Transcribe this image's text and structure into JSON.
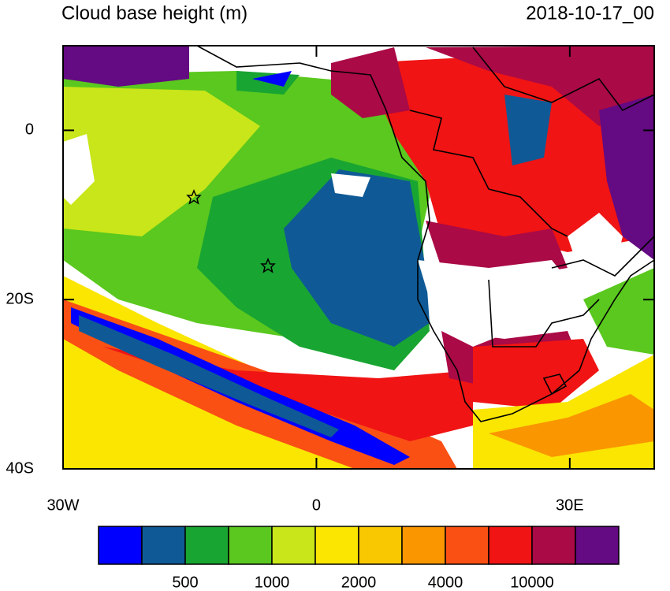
{
  "title": "Cloud base height (m)",
  "date": "2018-10-17_00",
  "map": {
    "xlim": [
      -30,
      40
    ],
    "ylim": [
      -40,
      10
    ],
    "lon_ticks": [
      {
        "value": -30,
        "label": "30W"
      },
      {
        "value": 0,
        "label": "0"
      },
      {
        "value": 30,
        "label": "30E"
      }
    ],
    "lat_ticks": [
      {
        "value": 0,
        "label": "0"
      },
      {
        "value": -20,
        "label": "20S"
      },
      {
        "value": -40,
        "label": "40S"
      }
    ]
  },
  "colorbar": {
    "colors": [
      "#0000ff",
      "#0f5a96",
      "#19a532",
      "#5ac81e",
      "#c8e619",
      "#fae600",
      "#fac800",
      "#fa9600",
      "#fa5014",
      "#f01414",
      "#aa0a46",
      "#640a82"
    ],
    "labels": [
      500,
      1000,
      2000,
      4000,
      10000
    ]
  }
}
